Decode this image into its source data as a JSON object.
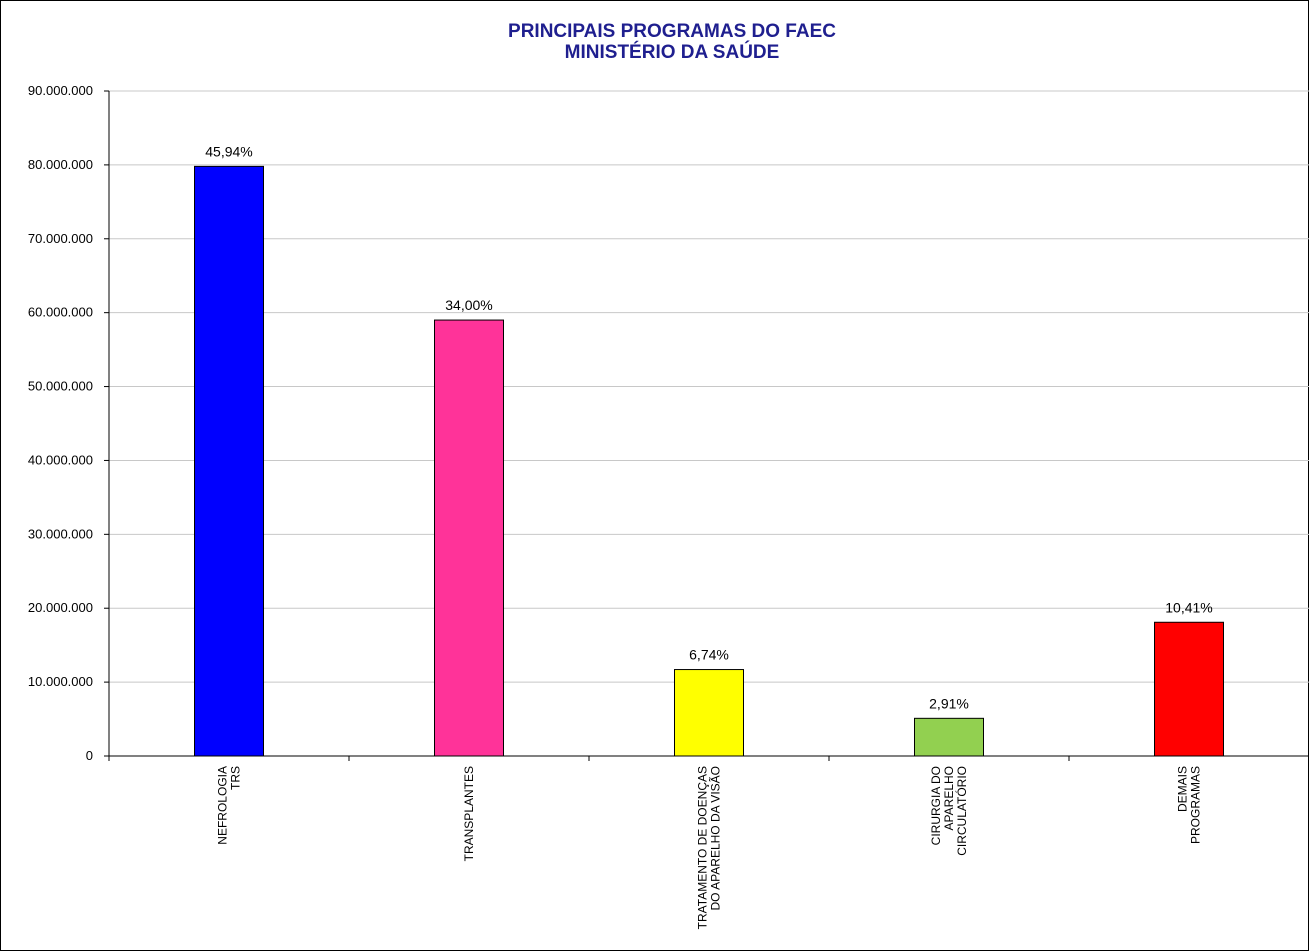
{
  "chart_data": {
    "type": "bar",
    "title_lines": [
      "PRINCIPAIS PROGRAMAS DO FAEC",
      "MINISTÉRIO DA SAÚDE"
    ],
    "categories": [
      [
        "NEFROLOGIA",
        "TRS"
      ],
      [
        "TRANSPLANTES"
      ],
      [
        "TRATAMENTO DE DOENÇAS",
        "DO APARELHO DA VISÃO"
      ],
      [
        "CIRURGIA DO",
        "APARELHO",
        "CIRCULATÓRIO"
      ],
      [
        "DEMAIS",
        "PROGRAMAS"
      ]
    ],
    "values": [
      79800000,
      59000000,
      11700000,
      5100000,
      18100000
    ],
    "data_labels": [
      "45,94%",
      "34,00%",
      "6,74%",
      "2,91%",
      "10,41%"
    ],
    "colors": [
      "#0000ff",
      "#ff3399",
      "#ffff00",
      "#92d050",
      "#ff0000"
    ],
    "ylim": [
      0,
      90000000
    ],
    "yticks": [
      0,
      10000000,
      20000000,
      30000000,
      40000000,
      50000000,
      60000000,
      70000000,
      80000000,
      90000000
    ],
    "ytick_labels": [
      "0",
      "10.000.000",
      "20.000.000",
      "30.000.000",
      "40.000.000",
      "50.000.000",
      "60.000.000",
      "70.000.000",
      "80.000.000",
      "90.000.000"
    ],
    "grid": true,
    "xlabel": "",
    "ylabel": ""
  }
}
